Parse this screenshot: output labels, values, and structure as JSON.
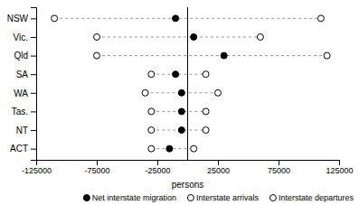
{
  "chart_data": {
    "type": "dot",
    "orientation": "horizontal",
    "categories": [
      "NSW",
      "Vic.",
      "Qld",
      "SA",
      "WA",
      "Tas.",
      "NT",
      "ACT"
    ],
    "series": [
      {
        "name": "Net interstate migration",
        "color": "#000000",
        "marker": "circle",
        "values": [
          -10000,
          5000,
          30000,
          -10000,
          -5000,
          -5000,
          -5000,
          -15000
        ]
      },
      {
        "name": "Interstate arrivals",
        "color": "#ffffff",
        "marker": "circle",
        "values": [
          -110000,
          -75000,
          -75000,
          -30000,
          -35000,
          -30000,
          -30000,
          -30000
        ]
      },
      {
        "name": "Interstate departures",
        "color": "#ffffff",
        "marker": "circle",
        "values": [
          110000,
          60000,
          115000,
          15000,
          25000,
          15000,
          15000,
          5000
        ]
      }
    ],
    "xlabel": "persons",
    "xlim": [
      -125000,
      125000
    ],
    "xticks": [
      -125000,
      -75000,
      -25000,
      25000,
      75000,
      125000
    ],
    "vline_x": 0,
    "grid": false,
    "legend": "lower right"
  }
}
